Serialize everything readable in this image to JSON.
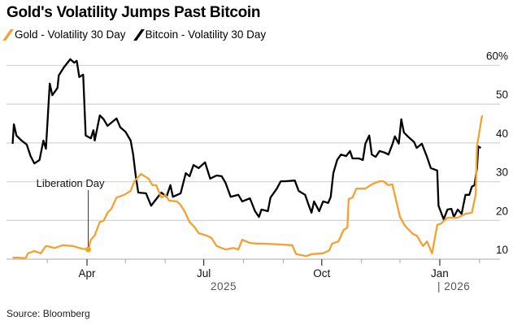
{
  "chart_data": {
    "type": "line",
    "title": "Gold's Volatility Jumps Past Bitcoin",
    "source": "Source: Bloomberg",
    "legend_position": "top-left",
    "grid": true,
    "y_axis": {
      "position": "right",
      "unit": "%",
      "ticks": [
        {
          "value": 60,
          "label": "60%"
        },
        {
          "value": 50,
          "label": "50"
        },
        {
          "value": 40,
          "label": "40"
        },
        {
          "value": 30,
          "label": "30"
        },
        {
          "value": 20,
          "label": "20"
        },
        {
          "value": 10,
          "label": "10"
        }
      ],
      "ylim": [
        10,
        60
      ]
    },
    "x_axis": {
      "ticks": [
        {
          "date": "2025-04-01",
          "label": "Apr"
        },
        {
          "date": "2025-07-01",
          "label": "Jul"
        },
        {
          "date": "2025-10-01",
          "label": "Oct"
        },
        {
          "date": "2026-01-01",
          "label": "Jan"
        }
      ],
      "minor_ticks": [
        "2025-03-01",
        "2025-05-01",
        "2025-06-01",
        "2025-08-01",
        "2025-09-01",
        "2025-11-01",
        "2025-12-01",
        "2026-02-01"
      ],
      "year_labels": [
        {
          "label": "2025"
        },
        {
          "label": "| 2026"
        }
      ]
    },
    "annotations": [
      {
        "label": "Liberation Day",
        "date": "2025-04-02",
        "series": "Gold - Volatility 30 Day",
        "value": 12.5
      }
    ],
    "series": [
      {
        "name": "Gold - Volatility 30 Day",
        "color": "#f5a030",
        "points": [
          [
            "2025-02-02",
            10.4
          ],
          [
            "2025-02-07",
            10.4
          ],
          [
            "2025-02-12",
            10.2
          ],
          [
            "2025-02-14",
            11.5
          ],
          [
            "2025-02-19",
            12.1
          ],
          [
            "2025-02-24",
            11.5
          ],
          [
            "2025-02-28",
            13.4
          ],
          [
            "2025-03-07",
            12.9
          ],
          [
            "2025-03-13",
            13.6
          ],
          [
            "2025-03-21",
            13.4
          ],
          [
            "2025-03-28",
            12.7
          ],
          [
            "2025-04-02",
            12.5
          ],
          [
            "2025-04-04",
            15.0
          ],
          [
            "2025-04-07",
            16.1
          ],
          [
            "2025-04-11",
            19.6
          ],
          [
            "2025-04-14",
            19.9
          ],
          [
            "2025-04-17",
            22.0
          ],
          [
            "2025-04-20",
            23.0
          ],
          [
            "2025-04-24",
            25.9
          ],
          [
            "2025-04-30",
            26.6
          ],
          [
            "2025-05-05",
            27.6
          ],
          [
            "2025-05-08",
            30.1
          ],
          [
            "2025-05-13",
            32.0
          ],
          [
            "2025-05-19",
            30.8
          ],
          [
            "2025-05-22",
            29.1
          ],
          [
            "2025-05-25",
            29.1
          ],
          [
            "2025-05-29",
            25.9
          ],
          [
            "2025-06-01",
            26.6
          ],
          [
            "2025-06-04",
            25.1
          ],
          [
            "2025-06-10",
            24.9
          ],
          [
            "2025-06-13",
            24.0
          ],
          [
            "2025-06-16",
            22.4
          ],
          [
            "2025-06-20",
            19.6
          ],
          [
            "2025-06-24",
            18.2
          ],
          [
            "2025-06-27",
            16.7
          ],
          [
            "2025-07-03",
            16.1
          ],
          [
            "2025-07-07",
            15.5
          ],
          [
            "2025-07-11",
            13.4
          ],
          [
            "2025-07-18",
            12.5
          ],
          [
            "2025-07-24",
            12.9
          ],
          [
            "2025-07-28",
            12.5
          ],
          [
            "2025-07-31",
            15.0
          ],
          [
            "2025-08-06",
            14.2
          ],
          [
            "2025-08-11",
            14.0
          ],
          [
            "2025-08-16",
            14.0
          ],
          [
            "2025-08-29",
            13.8
          ],
          [
            "2025-09-08",
            13.6
          ],
          [
            "2025-09-11",
            11.3
          ],
          [
            "2025-09-19",
            10.8
          ],
          [
            "2025-09-23",
            11.3
          ],
          [
            "2025-10-02",
            11.5
          ],
          [
            "2025-10-07",
            12.3
          ],
          [
            "2025-10-09",
            14.0
          ],
          [
            "2025-10-14",
            14.6
          ],
          [
            "2025-10-18",
            17.5
          ],
          [
            "2025-10-21",
            18.2
          ],
          [
            "2025-10-22",
            25.5
          ],
          [
            "2025-10-25",
            25.9
          ],
          [
            "2025-10-28",
            28.2
          ],
          [
            "2025-11-04",
            28.2
          ],
          [
            "2025-11-09",
            29.3
          ],
          [
            "2025-11-15",
            30.1
          ],
          [
            "2025-11-18",
            30.1
          ],
          [
            "2025-11-22",
            29.1
          ],
          [
            "2025-11-25",
            29.3
          ],
          [
            "2025-12-01",
            20.9
          ],
          [
            "2025-12-05",
            18.6
          ],
          [
            "2025-12-11",
            16.5
          ],
          [
            "2025-12-14",
            16.1
          ],
          [
            "2025-12-19",
            13.4
          ],
          [
            "2025-12-22",
            14.6
          ],
          [
            "2025-12-26",
            11.5
          ],
          [
            "2025-12-30",
            18.8
          ],
          [
            "2026-01-02",
            19.2
          ],
          [
            "2026-01-07",
            20.7
          ],
          [
            "2026-01-15",
            20.7
          ],
          [
            "2026-01-21",
            21.7
          ],
          [
            "2026-01-26",
            22.0
          ],
          [
            "2026-01-29",
            26.6
          ],
          [
            "2026-01-30",
            39.1
          ],
          [
            "2026-02-03",
            47.1
          ]
        ]
      },
      {
        "name": "Bitcoin - Volatility 30 Day",
        "color": "#000000",
        "points": [
          [
            "2025-02-02",
            39.8
          ],
          [
            "2025-02-03",
            44.8
          ],
          [
            "2025-02-05",
            41.9
          ],
          [
            "2025-02-09",
            40.6
          ],
          [
            "2025-02-13",
            39.6
          ],
          [
            "2025-02-16",
            36.6
          ],
          [
            "2025-02-19",
            34.7
          ],
          [
            "2025-02-23",
            35.6
          ],
          [
            "2025-02-26",
            40.6
          ],
          [
            "2025-02-28",
            38.5
          ],
          [
            "2025-03-03",
            55.3
          ],
          [
            "2025-03-05",
            52.3
          ],
          [
            "2025-03-09",
            54.2
          ],
          [
            "2025-03-10",
            57.4
          ],
          [
            "2025-03-14",
            59.5
          ],
          [
            "2025-03-19",
            61.6
          ],
          [
            "2025-03-22",
            60.7
          ],
          [
            "2025-03-24",
            61.2
          ],
          [
            "2025-03-26",
            57.0
          ],
          [
            "2025-03-29",
            57.6
          ],
          [
            "2025-03-31",
            41.9
          ],
          [
            "2025-04-04",
            41.2
          ],
          [
            "2025-04-06",
            43.3
          ],
          [
            "2025-04-07",
            40.6
          ],
          [
            "2025-04-11",
            47.1
          ],
          [
            "2025-04-14",
            46.1
          ],
          [
            "2025-04-17",
            44.4
          ],
          [
            "2025-04-24",
            46.3
          ],
          [
            "2025-04-27",
            44.0
          ],
          [
            "2025-05-01",
            42.9
          ],
          [
            "2025-05-05",
            40.6
          ],
          [
            "2025-05-07",
            37.0
          ],
          [
            "2025-05-09",
            31.4
          ],
          [
            "2025-05-11",
            27.2
          ],
          [
            "2025-05-17",
            27.0
          ],
          [
            "2025-05-21",
            23.8
          ],
          [
            "2025-05-24",
            25.1
          ],
          [
            "2025-05-29",
            27.2
          ],
          [
            "2025-06-02",
            26.1
          ],
          [
            "2025-06-05",
            29.1
          ],
          [
            "2025-06-07",
            26.1
          ],
          [
            "2025-06-13",
            27.0
          ],
          [
            "2025-06-17",
            32.2
          ],
          [
            "2025-06-20",
            31.4
          ],
          [
            "2025-06-23",
            34.3
          ],
          [
            "2025-06-27",
            33.5
          ],
          [
            "2025-07-02",
            35.0
          ],
          [
            "2025-07-06",
            30.8
          ],
          [
            "2025-07-11",
            31.6
          ],
          [
            "2025-07-15",
            31.4
          ],
          [
            "2025-07-18",
            29.7
          ],
          [
            "2025-07-22",
            26.1
          ],
          [
            "2025-07-28",
            26.6
          ],
          [
            "2025-07-31",
            24.9
          ],
          [
            "2025-08-06",
            25.7
          ],
          [
            "2025-08-10",
            22.4
          ],
          [
            "2025-08-13",
            20.9
          ],
          [
            "2025-08-15",
            22.8
          ],
          [
            "2025-08-20",
            22.4
          ],
          [
            "2025-08-22",
            25.9
          ],
          [
            "2025-08-27",
            28.2
          ],
          [
            "2025-08-30",
            30.1
          ],
          [
            "2025-09-02",
            30.1
          ],
          [
            "2025-09-10",
            30.3
          ],
          [
            "2025-09-13",
            27.6
          ],
          [
            "2025-09-18",
            26.6
          ],
          [
            "2025-09-21",
            23.8
          ],
          [
            "2025-09-23",
            22.0
          ],
          [
            "2025-09-25",
            24.9
          ],
          [
            "2025-09-29",
            22.4
          ],
          [
            "2025-10-02",
            24.9
          ],
          [
            "2025-10-06",
            24.5
          ],
          [
            "2025-10-08",
            26.1
          ],
          [
            "2025-10-10",
            32.2
          ],
          [
            "2025-10-13",
            35.6
          ],
          [
            "2025-10-16",
            37.0
          ],
          [
            "2025-10-20",
            36.6
          ],
          [
            "2025-10-23",
            37.9
          ],
          [
            "2025-10-25",
            36.0
          ],
          [
            "2025-10-30",
            36.0
          ],
          [
            "2025-11-02",
            35.6
          ],
          [
            "2025-11-04",
            39.8
          ],
          [
            "2025-11-07",
            41.9
          ],
          [
            "2025-11-09",
            37.0
          ],
          [
            "2025-11-12",
            36.4
          ],
          [
            "2025-11-15",
            37.9
          ],
          [
            "2025-11-19",
            37.5
          ],
          [
            "2025-11-22",
            37.0
          ],
          [
            "2025-11-25",
            39.6
          ],
          [
            "2025-11-27",
            41.7
          ],
          [
            "2025-11-30",
            39.8
          ],
          [
            "2025-12-02",
            46.1
          ],
          [
            "2025-12-04",
            42.7
          ],
          [
            "2025-12-07",
            41.7
          ],
          [
            "2025-12-12",
            40.2
          ],
          [
            "2025-12-14",
            38.7
          ],
          [
            "2025-12-18",
            39.8
          ],
          [
            "2025-12-22",
            36.4
          ],
          [
            "2025-12-25",
            33.5
          ],
          [
            "2025-12-30",
            32.9
          ],
          [
            "2025-12-31",
            23.8
          ],
          [
            "2026-01-04",
            20.3
          ],
          [
            "2026-01-07",
            22.8
          ],
          [
            "2026-01-10",
            23.0
          ],
          [
            "2026-01-12",
            20.9
          ],
          [
            "2026-01-15",
            22.8
          ],
          [
            "2026-01-18",
            21.7
          ],
          [
            "2026-01-21",
            26.6
          ],
          [
            "2026-01-24",
            26.6
          ],
          [
            "2026-01-26",
            28.7
          ],
          [
            "2026-01-28",
            29.1
          ],
          [
            "2026-01-30",
            33.5
          ],
          [
            "2026-01-31",
            39.1
          ],
          [
            "2026-02-02",
            38.7
          ]
        ]
      }
    ]
  }
}
